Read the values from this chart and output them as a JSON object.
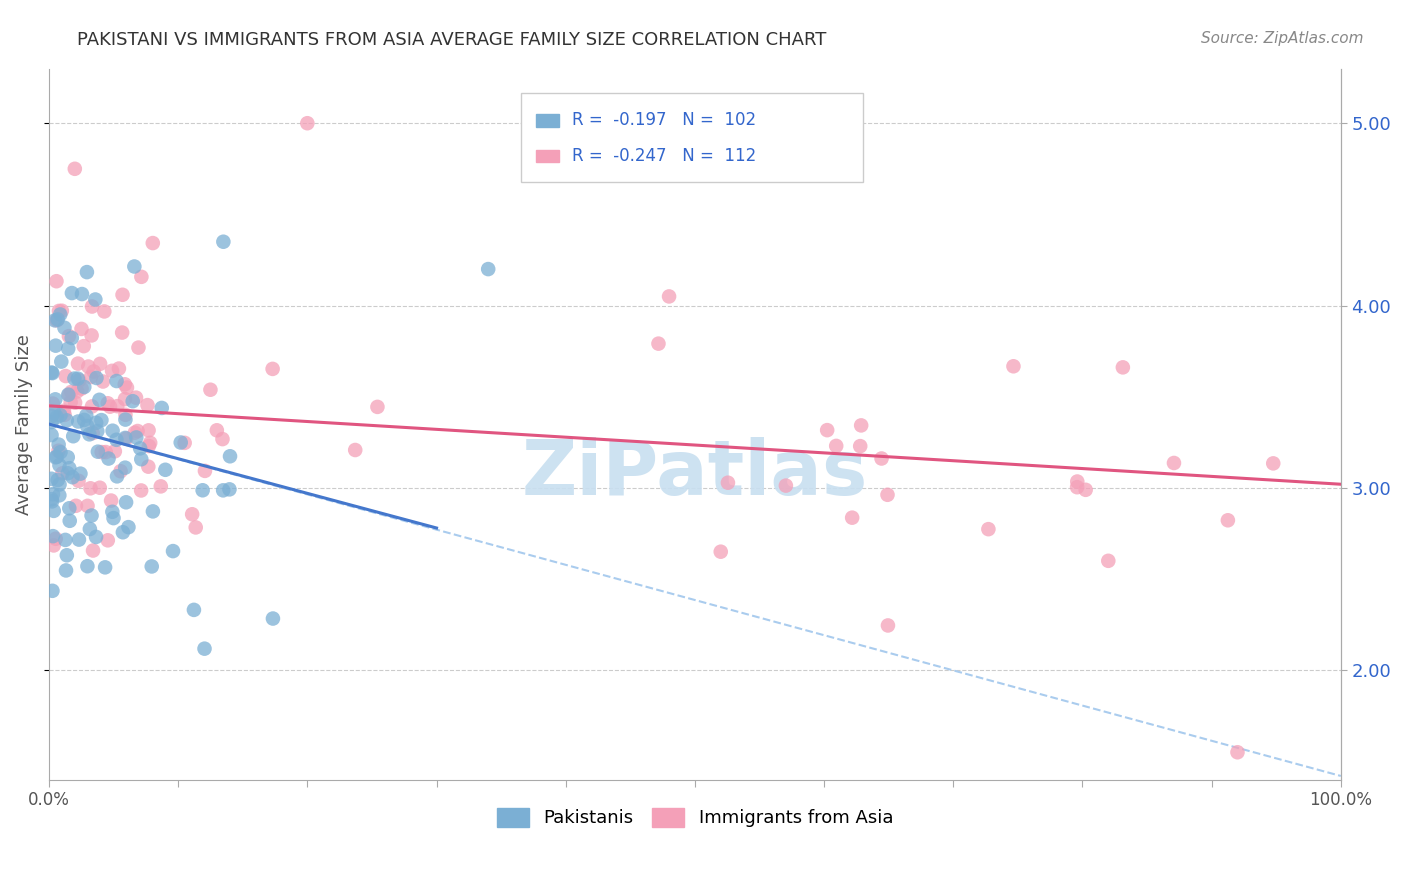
{
  "title": "PAKISTANI VS IMMIGRANTS FROM ASIA AVERAGE FAMILY SIZE CORRELATION CHART",
  "source": "Source: ZipAtlas.com",
  "ylabel": "Average Family Size",
  "xlim": [
    0.0,
    100.0
  ],
  "ylim": [
    1.4,
    5.3
  ],
  "yticks": [
    2.0,
    3.0,
    4.0,
    5.0
  ],
  "title_fontsize": 13,
  "source_fontsize": 11,
  "blue_color": "#7bafd4",
  "pink_color": "#f4a0b8",
  "trend_blue": "#4477cc",
  "trend_pink": "#e05580",
  "trend_dashed_color": "#aaccee",
  "grid_color": "#cccccc",
  "ytick_color": "#3366cc",
  "watermark": "ZiPatlas",
  "watermark_color": "#c8dff0",
  "legend_box_color": "#eeeeee",
  "legend_text_color": "#3366cc",
  "blue_legend_text": "R =  -0.197   N =  102",
  "pink_legend_text": "R =  -0.247   N =  112",
  "bottom_legend_blue": "Pakistanis",
  "bottom_legend_pink": "Immigrants from Asia",
  "blue_trend_x0": 0,
  "blue_trend_x1": 30,
  "blue_trend_y0": 3.35,
  "blue_trend_y1": 2.78,
  "pink_trend_x0": 0,
  "pink_trend_x1": 100,
  "pink_trend_y0": 3.45,
  "pink_trend_y1": 3.02,
  "dashed_x0": 0,
  "dashed_x1": 100,
  "dashed_y0": 3.35,
  "dashed_y1": 1.42
}
